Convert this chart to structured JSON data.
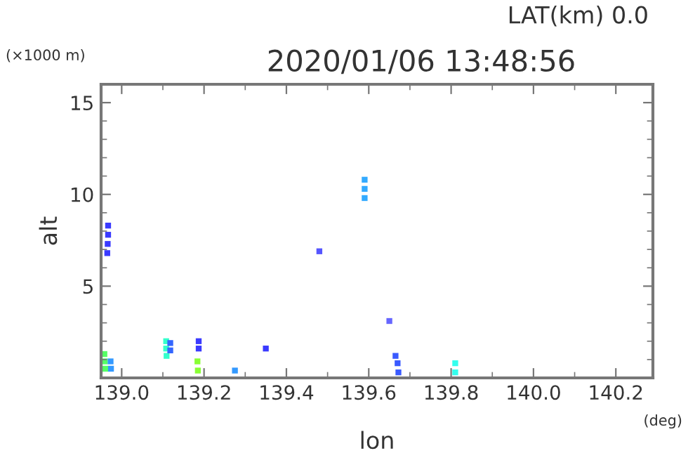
{
  "chart_data": {
    "type": "scatter",
    "title": "2020/01/06 13:48:56",
    "subtitle": "LAT(km) 0.0",
    "xlabel": "lon",
    "ylabel": "alt",
    "annotations": [
      "(×1000 m)",
      "(deg)"
    ],
    "xlim": [
      138.95,
      140.29
    ],
    "ylim": [
      0,
      16
    ],
    "xticks": [
      {
        "value": 139.0,
        "label": "139.0"
      },
      {
        "value": 139.2,
        "label": "139.2"
      },
      {
        "value": 139.4,
        "label": "139.4"
      },
      {
        "value": 139.6,
        "label": "139.6"
      },
      {
        "value": 139.8,
        "label": "139.8"
      },
      {
        "value": 140.0,
        "label": "140.0"
      },
      {
        "value": 140.2,
        "label": "140.2"
      }
    ],
    "yticks": [
      5,
      10,
      15
    ],
    "grid": false,
    "marker": "square",
    "series": [
      {
        "x": [
          138.967,
          138.967,
          138.966,
          138.965
        ],
        "values": [
          8.3,
          7.8,
          7.3,
          6.8
        ],
        "color": "#3a3aff"
      },
      {
        "x": [
          138.958,
          138.959,
          138.96
        ],
        "values": [
          1.3,
          0.9,
          0.5
        ],
        "color": "#55ff66"
      },
      {
        "x": [
          138.973,
          138.974
        ],
        "values": [
          0.9,
          0.5
        ],
        "color": "#3399ff"
      },
      {
        "x": [
          139.108,
          139.108,
          139.109
        ],
        "values": [
          2.0,
          1.6,
          1.2
        ],
        "color": "#33ffcc"
      },
      {
        "x": [
          139.118,
          139.118
        ],
        "values": [
          1.9,
          1.5
        ],
        "color": "#3366ff"
      },
      {
        "x": [
          139.187,
          139.187
        ],
        "values": [
          2.0,
          1.6
        ],
        "color": "#3a3aff"
      },
      {
        "x": [
          139.184,
          139.185
        ],
        "values": [
          0.9,
          0.4
        ],
        "color": "#88ff33"
      },
      {
        "x": [
          139.275
        ],
        "values": [
          0.4
        ],
        "color": "#3399ff"
      },
      {
        "x": [
          139.35
        ],
        "values": [
          1.6
        ],
        "color": "#3a3aff"
      },
      {
        "x": [
          139.48
        ],
        "values": [
          6.9
        ],
        "color": "#5555ff"
      },
      {
        "x": [
          139.59,
          139.59,
          139.59
        ],
        "values": [
          10.8,
          10.3,
          9.8
        ],
        "color": "#33aaff"
      },
      {
        "x": [
          139.65
        ],
        "values": [
          3.1
        ],
        "color": "#6666ff"
      },
      {
        "x": [
          139.665,
          139.67,
          139.672
        ],
        "values": [
          1.2,
          0.8,
          0.3
        ],
        "color": "#3a5aff"
      },
      {
        "x": [
          139.81,
          139.81
        ],
        "values": [
          0.8,
          0.3
        ],
        "color": "#33ffee"
      }
    ]
  }
}
